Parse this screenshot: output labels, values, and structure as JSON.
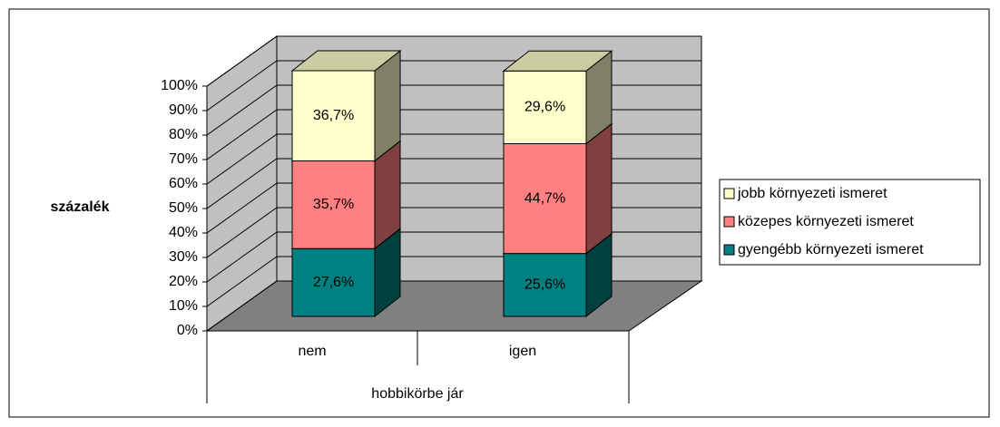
{
  "chart_data": {
    "type": "bar3d_stacked",
    "categories": [
      "nem",
      "igen"
    ],
    "x_label": "hobbikörbe jár",
    "y_label": "százalék",
    "ylim": [
      0,
      100
    ],
    "yticks": [
      {
        "value": 0,
        "label": "0%"
      },
      {
        "value": 10,
        "label": "10%"
      },
      {
        "value": 20,
        "label": "20%"
      },
      {
        "value": 30,
        "label": "30%"
      },
      {
        "value": 40,
        "label": "40%"
      },
      {
        "value": 50,
        "label": "50%"
      },
      {
        "value": 60,
        "label": "60%"
      },
      {
        "value": 70,
        "label": "70%"
      },
      {
        "value": 80,
        "label": "80%"
      },
      {
        "value": 90,
        "label": "90%"
      },
      {
        "value": 100,
        "label": "100%"
      }
    ],
    "grid": true,
    "legend": "right",
    "series": [
      {
        "name": "gyengébb környezeti ismeret",
        "color": "#008080",
        "values": [
          27.6,
          25.6
        ],
        "value_labels": [
          "27,6%",
          "25,6%"
        ]
      },
      {
        "name": "közepes környezeti ismeret",
        "color": "#ff8080",
        "values": [
          35.7,
          44.7
        ],
        "value_labels": [
          "35,7%",
          "44,7%"
        ]
      },
      {
        "name": "jobb környezeti ismeret",
        "color": "#ffffcc",
        "values": [
          36.7,
          29.6
        ],
        "value_labels": [
          "36,7%",
          "29,6%"
        ]
      }
    ]
  }
}
